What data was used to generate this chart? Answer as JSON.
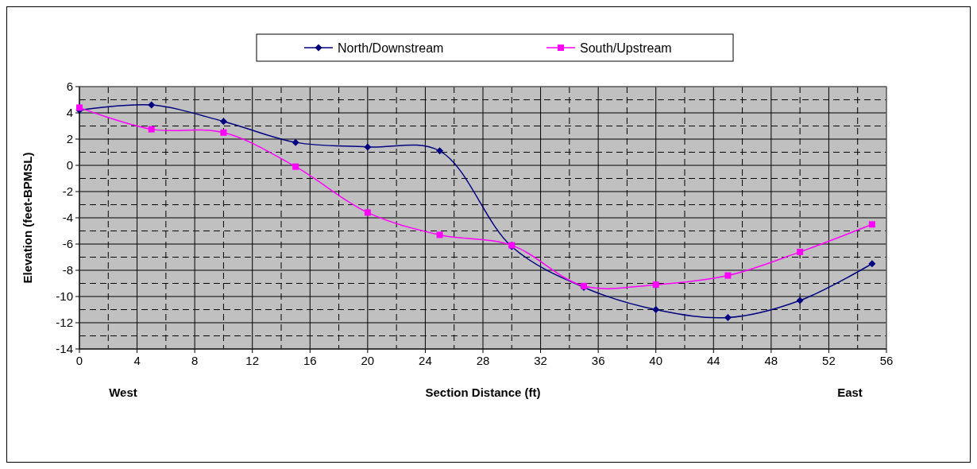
{
  "chart_data": {
    "type": "line",
    "xlabel": "Section Distance (ft)",
    "ylabel": "Elevation (feet-BPMSL)",
    "annotations": [
      "West",
      "East"
    ],
    "x": [
      0,
      5,
      10,
      15,
      20,
      25,
      30,
      35,
      40,
      45,
      50,
      55
    ],
    "series": [
      {
        "name": "North/Downstream",
        "color": "#000080",
        "marker": "diamond",
        "values": [
          4.2,
          4.6,
          3.35,
          1.75,
          1.4,
          1.1,
          -6.2,
          -9.3,
          -11.0,
          -11.6,
          -10.3,
          -7.5
        ]
      },
      {
        "name": "South/Upstream",
        "color": "#ff00ff",
        "marker": "square",
        "values": [
          4.4,
          2.75,
          2.5,
          -0.1,
          -3.6,
          -5.3,
          -6.1,
          -9.2,
          -9.1,
          -8.4,
          -6.6,
          -4.5
        ]
      }
    ],
    "xlim": [
      0,
      56
    ],
    "ylim": [
      -14,
      6
    ],
    "xticks": [
      0,
      {
        "value": 2,
        "label": null
      },
      4,
      {
        "value": 6,
        "label": null
      },
      8,
      {
        "value": 10,
        "label": null
      },
      12,
      {
        "value": 14,
        "label": null
      },
      16,
      {
        "value": 18,
        "label": null
      },
      20,
      {
        "value": 22,
        "label": null
      },
      24,
      {
        "value": 26,
        "label": null
      },
      28,
      {
        "value": 30,
        "label": null
      },
      32,
      {
        "value": 34,
        "label": null
      },
      36,
      {
        "value": 38,
        "label": null
      },
      40,
      {
        "value": 42,
        "label": null
      },
      44,
      {
        "value": 46,
        "label": null
      },
      48,
      {
        "value": 50,
        "label": null
      },
      52,
      {
        "value": 54,
        "label": null
      },
      56
    ],
    "yticks": [
      -14,
      {
        "value": -13,
        "label": null
      },
      -12,
      {
        "value": -11,
        "label": null
      },
      -10,
      {
        "value": -9,
        "label": null
      },
      -8,
      {
        "value": -7,
        "label": null
      },
      -6,
      {
        "value": -5,
        "label": null
      },
      -4,
      {
        "value": -3,
        "label": null
      },
      -2,
      {
        "value": -1,
        "label": null
      },
      0,
      {
        "value": 1,
        "label": null
      },
      2,
      {
        "value": 3,
        "label": null
      },
      4,
      {
        "value": 5,
        "label": null
      },
      6
    ],
    "grid": true,
    "legend": "top",
    "line_style": "solid"
  }
}
